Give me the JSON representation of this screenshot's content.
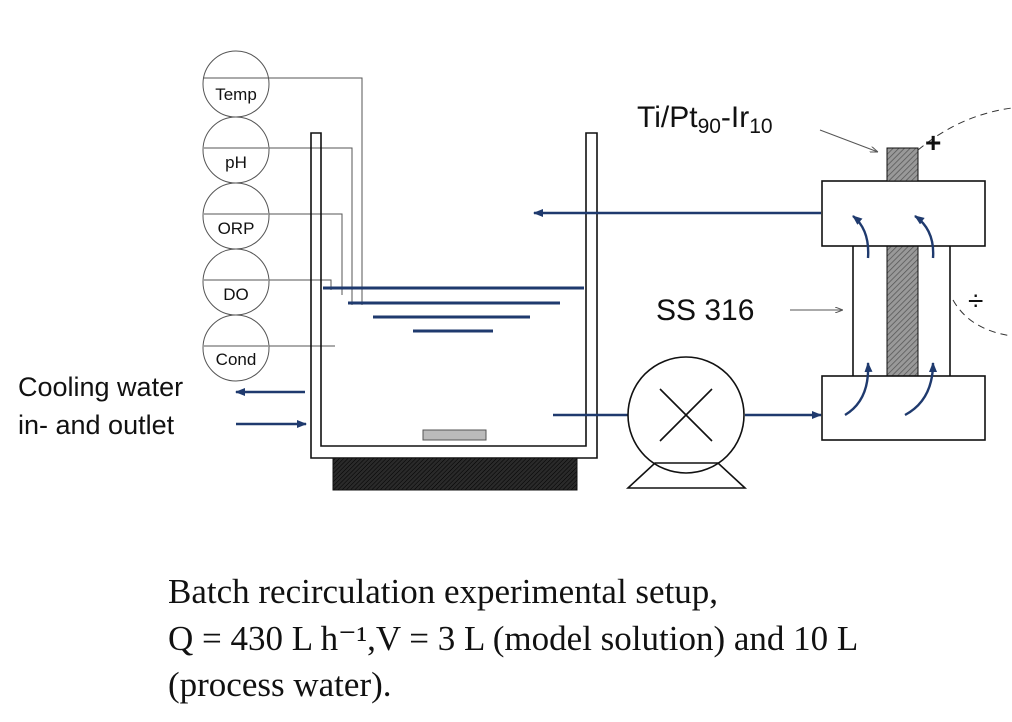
{
  "sensors": [
    "Temp",
    "pH",
    "ORP",
    "DO",
    "Cond"
  ],
  "cooling": [
    "Cooling water",
    "in- and outlet"
  ],
  "cell": {
    "anode_label": [
      "Ti/Pt",
      "90",
      "-Ir",
      "10"
    ],
    "plus": "+",
    "minus": "÷",
    "cathode_label": "SS 316"
  },
  "caption": [
    "Batch recirculation experimental setup,",
    "Q = 430 L h⁻¹,V = 3 L (model solution) and 10 L",
    "(process water)."
  ]
}
